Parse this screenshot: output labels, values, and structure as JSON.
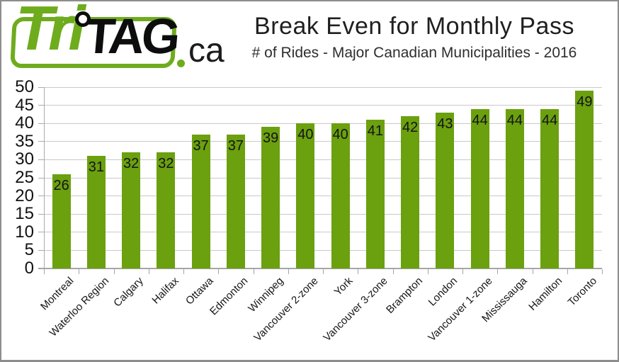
{
  "page": {
    "background": "#ffffff",
    "border_color": "#8d8d8d"
  },
  "logo": {
    "tri": "Tri",
    "tag": "TAG",
    "ca": "ca",
    "green": "#6EAC1E",
    "black": "#0d0d0d"
  },
  "header": {
    "title": "Break Even for Monthly Pass",
    "subtitle": "# of Rides - Major Canadian Municipalities - 2016"
  },
  "chart_data": {
    "type": "bar",
    "title": "Break Even for Monthly Pass",
    "subtitle": "# of Rides - Major Canadian Municipalities - 2016",
    "categories": [
      "Montreal",
      "Waterloo Region",
      "Calgary",
      "Halifax",
      "Ottawa",
      "Edmonton",
      "Winnipeg",
      "Vancouver 2-zone",
      "York",
      "Vancouver 3-zone",
      "Brampton",
      "London",
      "Vancouver 1-zone",
      "Mississauga",
      "Hamilton",
      "Toronto"
    ],
    "values": [
      26,
      31,
      32,
      32,
      37,
      37,
      39,
      40,
      40,
      41,
      42,
      43,
      44,
      44,
      44,
      49
    ],
    "xlabel": "",
    "ylabel": "",
    "ylim": [
      0,
      50
    ],
    "yticks": [
      0,
      5,
      10,
      15,
      20,
      25,
      30,
      35,
      40,
      45,
      50
    ],
    "grid": true,
    "legend": false,
    "data_labels": "inside-end",
    "bar_color": "#6BA00F",
    "grid_color": "#c9c9c9",
    "axis_color": "#a6a6a6",
    "label_color": "#141414"
  }
}
